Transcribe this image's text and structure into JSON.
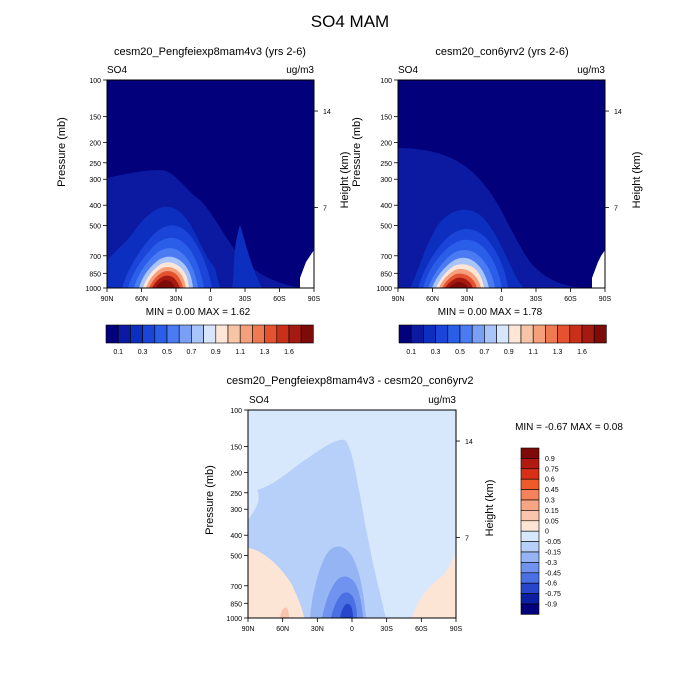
{
  "page": {
    "title": "SO4 MAM"
  },
  "panels": [
    {
      "id": "left",
      "title": "cesm20_Pengfeiexp8mam4v3 (yrs 2-6)",
      "left_label": "SO4",
      "right_label": "ug/m3",
      "min_max": "MIN =   0.00   MAX =   1.62",
      "ylabel": "Pressure (mb)",
      "ylabel_right": "Height (km)"
    },
    {
      "id": "right",
      "title": "cesm20_con6yrv2 (yrs 2-6)",
      "left_label": "SO4",
      "right_label": "ug/m3",
      "min_max": "MIN =   0.00   MAX =   1.78",
      "ylabel": "Pressure (mb)",
      "ylabel_right": "Height (km)"
    },
    {
      "id": "diff",
      "title": "cesm20_Pengfeiexp8mam4v3 - cesm20_con6yrv2",
      "left_label": "SO4",
      "right_label": "ug/m3",
      "min_max": "MIN =  -0.67   MAX =    0.08",
      "ylabel": "Pressure (mb)",
      "ylabel_right": "Height (km)"
    }
  ],
  "chart_data": [
    {
      "type": "heatmap",
      "title": "cesm20_Pengfeiexp8mam4v3 (yrs 2-6)",
      "xlabel": "",
      "ylabel": "Pressure (mb)",
      "x_ticks": [
        "90N",
        "60N",
        "30N",
        "0",
        "30S",
        "60S",
        "90S"
      ],
      "y_ticks": [
        100,
        150,
        200,
        250,
        300,
        400,
        500,
        700,
        850,
        1000
      ],
      "y_right_ticks": [
        "14",
        "7"
      ],
      "y_scale": "log",
      "min": 0.0,
      "max": 1.62,
      "colorbar_labels": [
        "0.1",
        "0.3",
        "0.5",
        "0.7",
        "0.9",
        "1.1",
        "1.3",
        "1.6"
      ],
      "max_location": {
        "lat": "30N",
        "pressure": 925
      }
    },
    {
      "type": "heatmap",
      "title": "cesm20_con6yrv2 (yrs 2-6)",
      "xlabel": "",
      "ylabel": "Pressure (mb)",
      "x_ticks": [
        "90N",
        "60N",
        "30N",
        "0",
        "30S",
        "60S",
        "90S"
      ],
      "y_ticks": [
        100,
        150,
        200,
        250,
        300,
        400,
        500,
        700,
        850,
        1000
      ],
      "y_right_ticks": [
        "14",
        "7"
      ],
      "y_scale": "log",
      "min": 0.0,
      "max": 1.78,
      "colorbar_labels": [
        "0.1",
        "0.3",
        "0.5",
        "0.7",
        "0.9",
        "1.1",
        "1.3",
        "1.6"
      ],
      "max_location": {
        "lat": "30N",
        "pressure": 925
      }
    },
    {
      "type": "heatmap",
      "title": "cesm20_Pengfeiexp8mam4v3 - cesm20_con6yrv2",
      "xlabel": "",
      "ylabel": "Pressure (mb)",
      "x_ticks": [
        "90N",
        "60N",
        "30N",
        "0",
        "30S",
        "60S",
        "90S"
      ],
      "y_ticks": [
        100,
        150,
        200,
        250,
        300,
        400,
        500,
        700,
        850,
        1000
      ],
      "y_right_ticks": [
        "14",
        "7"
      ],
      "y_scale": "log",
      "min": -0.67,
      "max": 0.08,
      "colorbar_labels": [
        "0.9",
        "0.75",
        "0.6",
        "0.45",
        "0.3",
        "0.15",
        "0.05",
        "0",
        "-0.05",
        "-0.15",
        "-0.3",
        "-0.45",
        "-0.6",
        "-0.75",
        "-0.9"
      ]
    }
  ],
  "colors": {
    "seq_scale": [
      "#02007a",
      "#0b1aa0",
      "#0d2fc0",
      "#1a45d8",
      "#2b5ee8",
      "#4a7bf2",
      "#7aa0f6",
      "#a8c4fa",
      "#d8e6fd",
      "#fde6d6",
      "#f7c4a8",
      "#f4a07c",
      "#ef7a52",
      "#e45230",
      "#c9301a",
      "#a51a10",
      "#7e0a0a"
    ],
    "diff_scale": [
      "#7e0a0a",
      "#b01a10",
      "#d83018",
      "#ef5a2a",
      "#f5825a",
      "#f7a585",
      "#f9c6ad",
      "#fde5d6",
      "#d8e8fc",
      "#b6d0fa",
      "#94b4f4",
      "#6f93ee",
      "#4a70e4",
      "#2846cc",
      "#0c1ea2",
      "#02007a"
    ]
  }
}
